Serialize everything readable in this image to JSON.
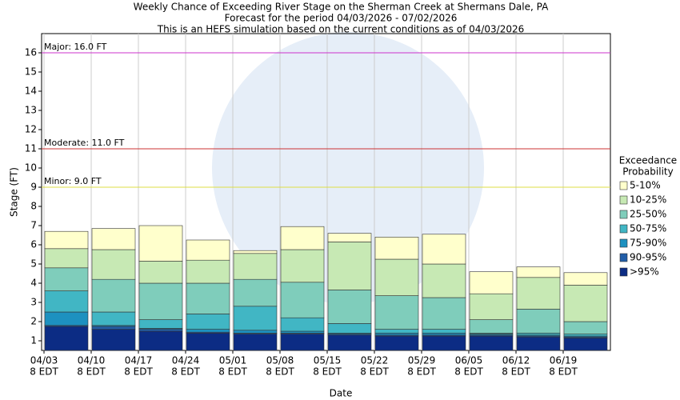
{
  "chart_data": {
    "type": "range_bar",
    "title": [
      "Weekly Chance of Exceeding River Stage on the Sherman Creek at Shermans Dale, PA",
      "Forecast for the period 04/03/2026 - 07/02/2026",
      "This is an HEFS simulation based on the current conditions as of 04/03/2026"
    ],
    "x_label": "Date",
    "y_label": "Stage (FT)",
    "categories": [
      "04/03",
      "04/10",
      "04/17",
      "04/24",
      "05/01",
      "05/08",
      "05/15",
      "05/22",
      "05/29",
      "06/05",
      "06/12",
      "06/19"
    ],
    "tick_time": "8 EDT",
    "ylim": [
      0.5,
      17
    ],
    "yticks": [
      1,
      2,
      3,
      4,
      5,
      6,
      7,
      8,
      9,
      10,
      11,
      12,
      13,
      14,
      15,
      16
    ],
    "grid": true,
    "legend_title": [
      "Exceedance",
      "Probability"
    ],
    "flood_levels": [
      {
        "label": "Major: 16.0 FT",
        "value": 16,
        "color": "#cc33cc"
      },
      {
        "label": "Moderate: 11.0 FT",
        "value": 11,
        "color": "#cc3333"
      },
      {
        "label": "Minor: 9.0 FT",
        "value": 9,
        "color": "#dddd44"
      }
    ],
    "series": [
      {
        "name": ">95%",
        "color": "#0c2c84",
        "values": [
          1.75,
          1.6,
          1.5,
          1.4,
          1.35,
          1.35,
          1.3,
          1.25,
          1.25,
          1.25,
          1.2,
          1.15
        ]
      },
      {
        "name": "90-95%",
        "color": "#225ea8",
        "values": [
          1.8,
          1.75,
          1.6,
          1.45,
          1.4,
          1.4,
          1.35,
          1.3,
          1.3,
          1.3,
          1.25,
          1.2
        ]
      },
      {
        "name": "75-90%",
        "color": "#1d91c0",
        "values": [
          2.5,
          1.8,
          1.65,
          1.6,
          1.55,
          1.5,
          1.4,
          1.4,
          1.4,
          1.35,
          1.3,
          1.25
        ]
      },
      {
        "name": "50-75%",
        "color": "#41b6c4",
        "values": [
          3.6,
          2.5,
          2.1,
          2.4,
          2.8,
          2.2,
          1.9,
          1.6,
          1.6,
          1.4,
          1.4,
          1.35
        ]
      },
      {
        "name": "25-50%",
        "color": "#7fcdbb",
        "values": [
          4.8,
          4.2,
          4.0,
          4.0,
          4.2,
          4.05,
          3.65,
          3.35,
          3.25,
          2.1,
          2.65,
          2.0
        ]
      },
      {
        "name": "10-25%",
        "color": "#c7e9b4",
        "values": [
          5.8,
          5.75,
          5.15,
          5.2,
          5.55,
          5.75,
          6.15,
          5.25,
          5.0,
          3.45,
          4.3,
          3.9
        ]
      },
      {
        "name": "5-10%",
        "color": "#ffffcc",
        "values": [
          6.7,
          6.85,
          7.0,
          6.25,
          5.7,
          6.95,
          6.6,
          6.4,
          6.55,
          4.6,
          4.85,
          4.55
        ]
      }
    ]
  }
}
